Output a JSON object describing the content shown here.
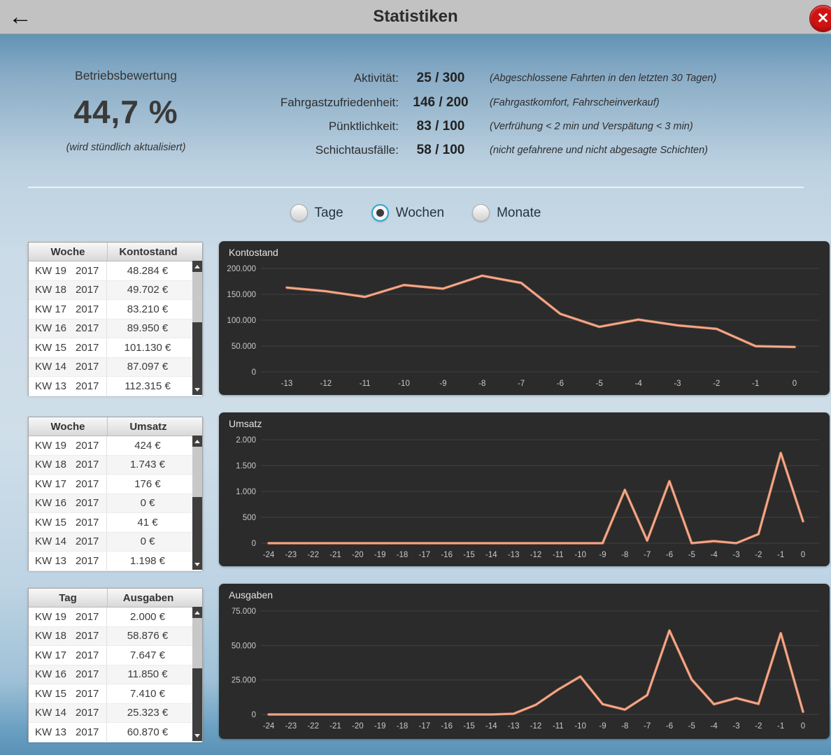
{
  "header": {
    "title": "Statistiken",
    "back_icon": "←",
    "close_icon": "✕"
  },
  "rating": {
    "title": "Betriebsbewertung",
    "value": "44,7 %",
    "note": "(wird stündlich aktualisiert)"
  },
  "metrics": [
    {
      "label": "Aktivität:",
      "value": "25 / 300",
      "desc": "(Abgeschlossene Fahrten in den letzten 30 Tagen)"
    },
    {
      "label": "Fahrgastzufriedenheit:",
      "value": "146 / 200",
      "desc": "(Fahrgastkomfort, Fahrscheinverkauf)"
    },
    {
      "label": "Pünktlichkeit:",
      "value": "83 / 100",
      "desc": "(Verfrühung < 2  min und Verspätung < 3 min)"
    },
    {
      "label": "Schichtausfälle:",
      "value": "58 / 100",
      "desc": "(nicht gefahrene und nicht abgesagte Schichten)"
    }
  ],
  "period_options": [
    {
      "label": "Tage",
      "selected": false
    },
    {
      "label": "Wochen",
      "selected": true
    },
    {
      "label": "Monate",
      "selected": false
    }
  ],
  "tables": [
    {
      "columns": [
        "Woche",
        "Kontostand"
      ],
      "rows": [
        {
          "week": "KW 19",
          "year": "2017",
          "value": "48.284 €"
        },
        {
          "week": "KW 18",
          "year": "2017",
          "value": "49.702 €"
        },
        {
          "week": "KW 17",
          "year": "2017",
          "value": "83.210 €"
        },
        {
          "week": "KW 16",
          "year": "2017",
          "value": "89.950 €"
        },
        {
          "week": "KW 15",
          "year": "2017",
          "value": "101.130 €"
        },
        {
          "week": "KW 14",
          "year": "2017",
          "value": "87.097 €"
        },
        {
          "week": "KW 13",
          "year": "2017",
          "value": "112.315 €"
        }
      ]
    },
    {
      "columns": [
        "Woche",
        "Umsatz"
      ],
      "rows": [
        {
          "week": "KW 19",
          "year": "2017",
          "value": "424 €"
        },
        {
          "week": "KW 18",
          "year": "2017",
          "value": "1.743 €"
        },
        {
          "week": "KW 17",
          "year": "2017",
          "value": "176 €"
        },
        {
          "week": "KW 16",
          "year": "2017",
          "value": "0 €"
        },
        {
          "week": "KW 15",
          "year": "2017",
          "value": "41 €"
        },
        {
          "week": "KW 14",
          "year": "2017",
          "value": "0 €"
        },
        {
          "week": "KW 13",
          "year": "2017",
          "value": "1.198 €"
        }
      ]
    },
    {
      "columns": [
        "Tag",
        "Ausgaben"
      ],
      "rows": [
        {
          "week": "KW 19",
          "year": "2017",
          "value": "2.000 €"
        },
        {
          "week": "KW 18",
          "year": "2017",
          "value": "58.876 €"
        },
        {
          "week": "KW 17",
          "year": "2017",
          "value": "7.647 €"
        },
        {
          "week": "KW 16",
          "year": "2017",
          "value": "11.850 €"
        },
        {
          "week": "KW 15",
          "year": "2017",
          "value": "7.410 €"
        },
        {
          "week": "KW 14",
          "year": "2017",
          "value": "25.323 €"
        },
        {
          "week": "KW 13",
          "year": "2017",
          "value": "60.870 €"
        }
      ]
    }
  ],
  "chart_data": [
    {
      "type": "line",
      "title": "Kontostand",
      "x": [
        -13,
        -12,
        -11,
        -10,
        -9,
        -8,
        -7,
        -6,
        -5,
        -4,
        -3,
        -2,
        -1,
        0
      ],
      "values": [
        163000,
        156000,
        145000,
        168000,
        161000,
        186000,
        172000,
        112315,
        87097,
        101130,
        89950,
        83210,
        49702,
        48284
      ],
      "ylim": [
        0,
        200000
      ],
      "yticks": [
        0,
        50000,
        100000,
        150000,
        200000
      ],
      "ytick_labels": [
        "0",
        "50.000",
        "100.000",
        "150.000",
        "200.000"
      ],
      "xlabel": "",
      "ylabel": "",
      "grid": true,
      "legend": "none"
    },
    {
      "type": "line",
      "title": "Umsatz",
      "x": [
        -24,
        -23,
        -22,
        -21,
        -20,
        -19,
        -18,
        -17,
        -16,
        -15,
        -14,
        -13,
        -12,
        -11,
        -10,
        -9,
        -8,
        -7,
        -6,
        -5,
        -4,
        -3,
        -2,
        -1,
        0
      ],
      "values": [
        0,
        0,
        0,
        0,
        0,
        0,
        0,
        0,
        0,
        0,
        0,
        0,
        0,
        0,
        0,
        0,
        1030,
        50,
        1198,
        0,
        41,
        0,
        176,
        1743,
        424
      ],
      "ylim": [
        0,
        2000
      ],
      "yticks": [
        0,
        500,
        1000,
        1500,
        2000
      ],
      "ytick_labels": [
        "0",
        "500",
        "1.000",
        "1.500",
        "2.000"
      ],
      "xlabel": "",
      "ylabel": "",
      "grid": true,
      "legend": "none"
    },
    {
      "type": "line",
      "title": "Ausgaben",
      "x": [
        -24,
        -23,
        -22,
        -21,
        -20,
        -19,
        -18,
        -17,
        -16,
        -15,
        -14,
        -13,
        -12,
        -11,
        -10,
        -9,
        -8,
        -7,
        -6,
        -5,
        -4,
        -3,
        -2,
        -1,
        0
      ],
      "values": [
        0,
        0,
        0,
        0,
        0,
        0,
        0,
        0,
        0,
        0,
        0,
        500,
        7000,
        18000,
        27500,
        7500,
        3500,
        14000,
        60870,
        25323,
        7410,
        11850,
        7647,
        58876,
        2000
      ],
      "ylim": [
        0,
        75000
      ],
      "yticks": [
        0,
        25000,
        50000,
        75000
      ],
      "ytick_labels": [
        "0",
        "25.000",
        "50.000",
        "75.000"
      ],
      "xlabel": "",
      "ylabel": "",
      "grid": true,
      "legend": "none"
    }
  ],
  "colors": {
    "line": "#e08a68",
    "line_highlight": "#f6b79c",
    "chart_bg": "#2b2b2b",
    "grid": "#414141",
    "close_red": "#d01212",
    "radio_ring": "#2ea7cf",
    "header_gray": "#c2c2c2"
  }
}
